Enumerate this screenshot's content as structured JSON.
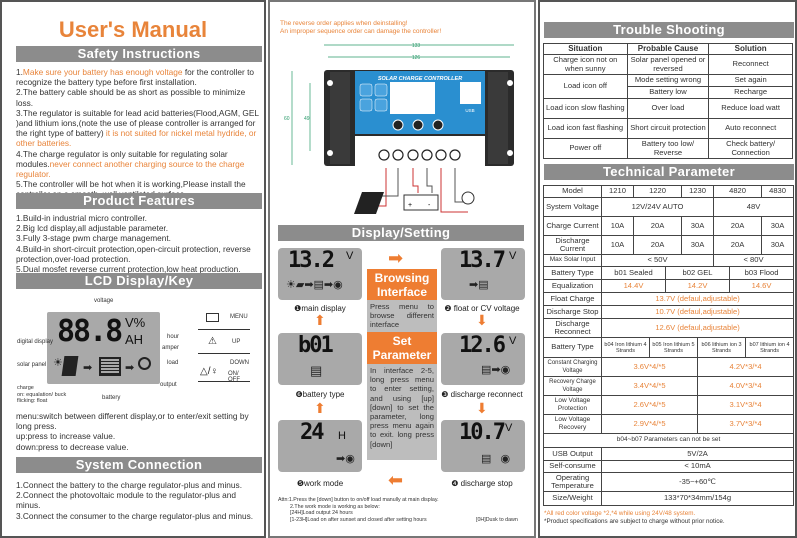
{
  "left": {
    "title": "User's Manual",
    "safety": {
      "header": "Safety Instructions",
      "items": [
        {
          "n": "1.",
          "hl": "Make sure your battery has enough voltage",
          "rest": " for the controller to recognize the battery type before first installation."
        },
        {
          "n": "2.",
          "text": "The battery cable should be as short as possible to minimize loss."
        },
        {
          "n": "3.",
          "text": "The regulator is suitable for lead acid batteries(Flood,AGM, GEL )and lithium ions,(note the use of please controller is arranged for the right type of battery)",
          "hl2": " it is not suited for nickel metal hydride, or other batteries."
        },
        {
          "n": "4.",
          "text": "The charge regulator is only suitable for regulating solar modules.",
          "hl2": "never connect another charging source to the charge regulator."
        },
        {
          "n": "5.",
          "text": "The controller will be hot when it is working,Please install the controller on a smooth, well ventilated surface."
        }
      ]
    },
    "features": {
      "header": "Product Features",
      "items": [
        "1.Build-in industrial micro controller.",
        "2.Big lcd display,all adjustable parameter.",
        "3.Fully 3-stage pwm charge management.",
        "4.Build-in short-circuit protection,open-circuit protection, reverse protection,over-load protection.",
        "5.Dual mosfet reverse current protection,low heat production."
      ]
    },
    "lcd": {
      "header": "LCD Display/Key",
      "digits": "88.8",
      "units1": "V%",
      "units2": "AH",
      "callouts": {
        "voltage": "voltage",
        "digital": "digital display",
        "solar": "solar panel",
        "hour": "hour",
        "amper": "amper",
        "load": "load",
        "output": "output",
        "battery": "battery",
        "charge": "charge\non: equalation/ buck\nflicking: float"
      },
      "keys": [
        {
          "label": "MENU",
          "icon": "menu-key-icon"
        },
        {
          "label": "UP",
          "icon": "up-triangle-icon"
        },
        {
          "label": "DOWN",
          "label2": "ON/ OFF",
          "icon": "down-load-icon"
        }
      ],
      "desc": [
        "menu:switch between different display,or to enter/exit setting by long press.",
        "up:press to increase value.",
        "down:press to decrease value."
      ]
    },
    "connection": {
      "header": "System Connection",
      "items": [
        "1.Connect the battery to the charge regulator-plus and minus.",
        "2.Connect the photovoltaic module to the regulator-plus and minus.",
        "3.Connect the consumer to the charge regulator-plus and minus."
      ]
    }
  },
  "middle": {
    "warning": [
      "The reverse order applies when deinstalling!",
      "An improper sequence order can damage the controller!"
    ],
    "device": {
      "title": "SOLAR CHARGE CONTROLLER",
      "dim_w1": "133",
      "dim_w2": "126",
      "dim_h1": "60",
      "dim_h2": "49",
      "usb": "USB"
    },
    "header": "Display/Setting",
    "browsing": {
      "title": "Browsing Interface",
      "text": "Press menu to browse different interface"
    },
    "set": {
      "title": "Set Parameter",
      "text": "In interface 2-5, long press menu to enter setting, and using [up] [down] to set the parameter, long press menu again to exit. long press [down]"
    },
    "screens": [
      {
        "value": "13.2",
        "unit": "V",
        "label": "❶main display"
      },
      {
        "value": "13.7",
        "unit": "V",
        "label": "❷ float or CV voltage"
      },
      {
        "value": "12.6",
        "unit": "V",
        "label": "❸ discharge reconnect"
      },
      {
        "value": "10.7",
        "unit": "V",
        "label": "❹ discharge stop"
      },
      {
        "value": "24",
        "unit": "H",
        "label": "❺work mode"
      },
      {
        "value": "b01",
        "unit": "",
        "label": "❻battery type"
      }
    ],
    "attn": [
      "Attn:1.Press the [down] button to on/off load manully at main display.",
      "2.The work mode is working as below:",
      "[24H]Load output 24 hours",
      "[1-23H]Load on after sunset and closed after setting hours",
      "[0H]Dusk to dawn"
    ]
  },
  "right": {
    "trouble": {
      "header": "Trouble Shooting",
      "columns": [
        "Situation",
        "Probable Cause",
        "Solution"
      ],
      "rows": [
        [
          "Charge icon not on when sunny",
          "Solar panel opened or reversed",
          "Reconnect"
        ],
        [
          "Load icon off",
          "Mode setting wrong",
          "Set again"
        ],
        [
          "",
          "Battery low",
          "Recharge"
        ],
        [
          "Load icon slow flashing",
          "Over load",
          "Reduce load watt"
        ],
        [
          "Load icon fast flashing",
          "Short circuit protection",
          "Auto reconnect"
        ],
        [
          "Power off",
          "Battery too low/ Reverse",
          "Check battery/ Connection"
        ]
      ]
    },
    "tech": {
      "header": "Technical Parameter",
      "model": [
        "Model",
        "1210",
        "1220",
        "1230",
        "4820",
        "4830"
      ],
      "system_voltage": [
        "System Voltage",
        "12V/24V AUTO",
        "48V"
      ],
      "charge_current": [
        "Charge Current",
        "10A",
        "20A",
        "30A",
        "20A",
        "30A"
      ],
      "discharge_current": [
        "Discharge Current",
        "10A",
        "20A",
        "30A",
        "20A",
        "30A"
      ],
      "max_solar": [
        "Max Solar Input",
        "< 50V",
        "< 80V"
      ],
      "battery_type": [
        "Battery Type",
        "b01 Sealed",
        "b02 GEL",
        "b03 Flood"
      ],
      "equalization": [
        "Equalization",
        "14.4V",
        "14.2V",
        "14.6V"
      ],
      "float": [
        "Float Charge",
        "13.7V (defaul,adjustable)"
      ],
      "dstop": [
        "Discharge Stop",
        "10.7V (defaul,adjustable)"
      ],
      "drec": [
        "Discharge Reconnect",
        "12.6V (defaul,adjustable)"
      ],
      "battery_type2": [
        "Battery Type",
        "b04 Iron lithium 4 Strands",
        "b05 Iron lithium 5 Strands",
        "b06 lithium ion 3 Strands",
        "b07 lithium ion 4 Strands"
      ],
      "constant": [
        "Constant Charging Voltage",
        "3.6V*4/*5",
        "4.2V*3/*4"
      ],
      "recovery": [
        "Recovery Charge Voltage",
        "3.4V*4/*5",
        "4.0V*3/*4"
      ],
      "lvp": [
        "Low Voltage Protection",
        "2.6V*4/*5",
        "3.1V*3/*4"
      ],
      "lvr": [
        "Low Voltage Recovery",
        "2.9V*4/*5",
        "3.7V*3/*4"
      ],
      "note": "b04~b07 Parameters can not be set",
      "usb": [
        "USB Output",
        "5V/2A"
      ],
      "self": [
        "Self-consume",
        "< 10mA"
      ],
      "temp": [
        "Operating Temperature",
        "-35~+60℃"
      ],
      "size": [
        "Size/Weight",
        "133*70*34mm/154g"
      ]
    },
    "footnotes": [
      "*All red color voltage *2,*4 while using 24V/48 system.",
      "*Product specifications are subject to charge without prior notice."
    ]
  },
  "colors": {
    "accent": "#e8843a",
    "header_bar": "#8c8c8c",
    "lcd": "#a9a9a9",
    "device_blue": "#2a8fd0"
  }
}
